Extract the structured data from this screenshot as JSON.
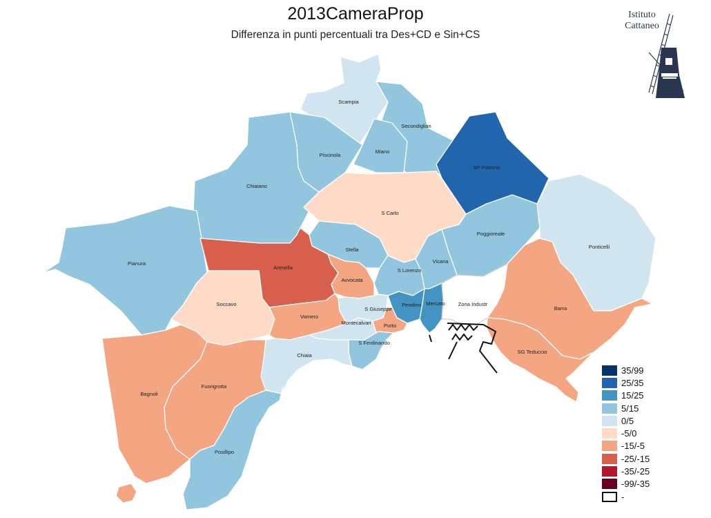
{
  "title": "2013CameraProp",
  "subtitle": "Differenza in punti percentuali tra Des+CD e Sin+CS",
  "logo": {
    "lines": [
      "Istituto",
      "Cattaneo"
    ]
  },
  "colors": {
    "35/99": "#08306b",
    "25/35": "#2166ac",
    "15/25": "#4393c3",
    "5/15": "#92c5de",
    "0/5": "#d1e5f0",
    "-5/0": "#fddbc7",
    "-15/-5": "#f4a582",
    "-25/-15": "#d6604d",
    "-35/-25": "#b2182b",
    "-99/-35": "#67001f",
    "-": "#ffffff"
  },
  "legend": [
    {
      "label": "35/99",
      "color": "#08306b"
    },
    {
      "label": "25/35",
      "color": "#2166ac"
    },
    {
      "label": "15/25",
      "color": "#4393c3"
    },
    {
      "label": "5/15",
      "color": "#92c5de"
    },
    {
      "label": "0/5",
      "color": "#d1e5f0"
    },
    {
      "label": "-5/0",
      "color": "#fddbc7"
    },
    {
      "label": "-15/-5",
      "color": "#f4a582"
    },
    {
      "label": "-25/-15",
      "color": "#d6604d"
    },
    {
      "label": "-35/-25",
      "color": "#b2182b"
    },
    {
      "label": "-99/-35",
      "color": "#67001f"
    },
    {
      "label": "-",
      "color": "#ffffff"
    }
  ],
  "zones": [
    {
      "name": "Scampia",
      "class": "0/5"
    },
    {
      "name": "Secondiglian",
      "class": "5/15"
    },
    {
      "name": "Piscinola",
      "class": "5/15"
    },
    {
      "name": "Miano",
      "class": "5/15"
    },
    {
      "name": "Chiaiano",
      "class": "5/15"
    },
    {
      "name": "SP Paterno",
      "class": "25/35"
    },
    {
      "name": "S Carlo",
      "class": "-5/0"
    },
    {
      "name": "Poggioreale",
      "class": "5/15"
    },
    {
      "name": "Ponticelli",
      "class": "0/5"
    },
    {
      "name": "Pianura",
      "class": "5/15"
    },
    {
      "name": "Arenella",
      "class": "-25/-15"
    },
    {
      "name": "Stella",
      "class": "5/15"
    },
    {
      "name": "S Lorenzo",
      "class": "5/15"
    },
    {
      "name": "Vicaria",
      "class": "5/15"
    },
    {
      "name": "Avvocata",
      "class": "-15/-5"
    },
    {
      "name": "Soccavo",
      "class": "-5/0"
    },
    {
      "name": "Vomero",
      "class": "-15/-5"
    },
    {
      "name": "S Giuseppe",
      "class": "0/5"
    },
    {
      "name": "Pendino",
      "class": "15/25"
    },
    {
      "name": "Mercato",
      "class": "15/25"
    },
    {
      "name": "Zona Industr",
      "class": "-"
    },
    {
      "name": "Barra",
      "class": "-15/-5"
    },
    {
      "name": "Montecalvari",
      "class": "0/5"
    },
    {
      "name": "Porto",
      "class": "-15/-5"
    },
    {
      "name": "S Ferdinando",
      "class": "5/15"
    },
    {
      "name": "SG Teduccio",
      "class": "-15/-5"
    },
    {
      "name": "Chiaia",
      "class": "0/5"
    },
    {
      "name": "Bagnoli",
      "class": "-15/-5"
    },
    {
      "name": "Fuorigrotta",
      "class": "-15/-5"
    },
    {
      "name": "Posillipo",
      "class": "5/15"
    }
  ]
}
